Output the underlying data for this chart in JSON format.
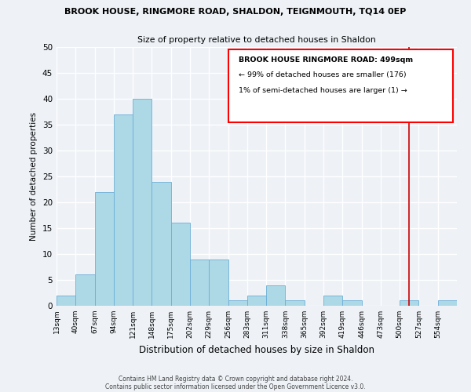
{
  "title": "BROOK HOUSE, RINGMORE ROAD, SHALDON, TEIGNMOUTH, TQ14 0EP",
  "subtitle": "Size of property relative to detached houses in Shaldon",
  "xlabel": "Distribution of detached houses by size in Shaldon",
  "ylabel": "Number of detached properties",
  "bar_labels": [
    "13sqm",
    "40sqm",
    "67sqm",
    "94sqm",
    "121sqm",
    "148sqm",
    "175sqm",
    "202sqm",
    "229sqm",
    "256sqm",
    "283sqm",
    "311sqm",
    "338sqm",
    "365sqm",
    "392sqm",
    "419sqm",
    "446sqm",
    "473sqm",
    "500sqm",
    "527sqm",
    "554sqm"
  ],
  "bar_values": [
    2,
    6,
    22,
    37,
    40,
    24,
    16,
    9,
    9,
    1,
    2,
    4,
    1,
    0,
    2,
    1,
    0,
    0,
    1,
    0,
    1
  ],
  "bar_color": "#add8e6",
  "bar_edge_color": "#6baed6",
  "vline_color": "#cc0000",
  "ylim": [
    0,
    50
  ],
  "yticks": [
    0,
    5,
    10,
    15,
    20,
    25,
    30,
    35,
    40,
    45,
    50
  ],
  "annotation_title": "BROOK HOUSE RINGMORE ROAD: 499sqm",
  "annotation_line1": "← 99% of detached houses are smaller (176)",
  "annotation_line2": "1% of semi-detached houses are larger (1) →",
  "footer_line1": "Contains HM Land Registry data © Crown copyright and database right 2024.",
  "footer_line2": "Contains public sector information licensed under the Open Government Licence v3.0.",
  "bg_color": "#eef2f7"
}
